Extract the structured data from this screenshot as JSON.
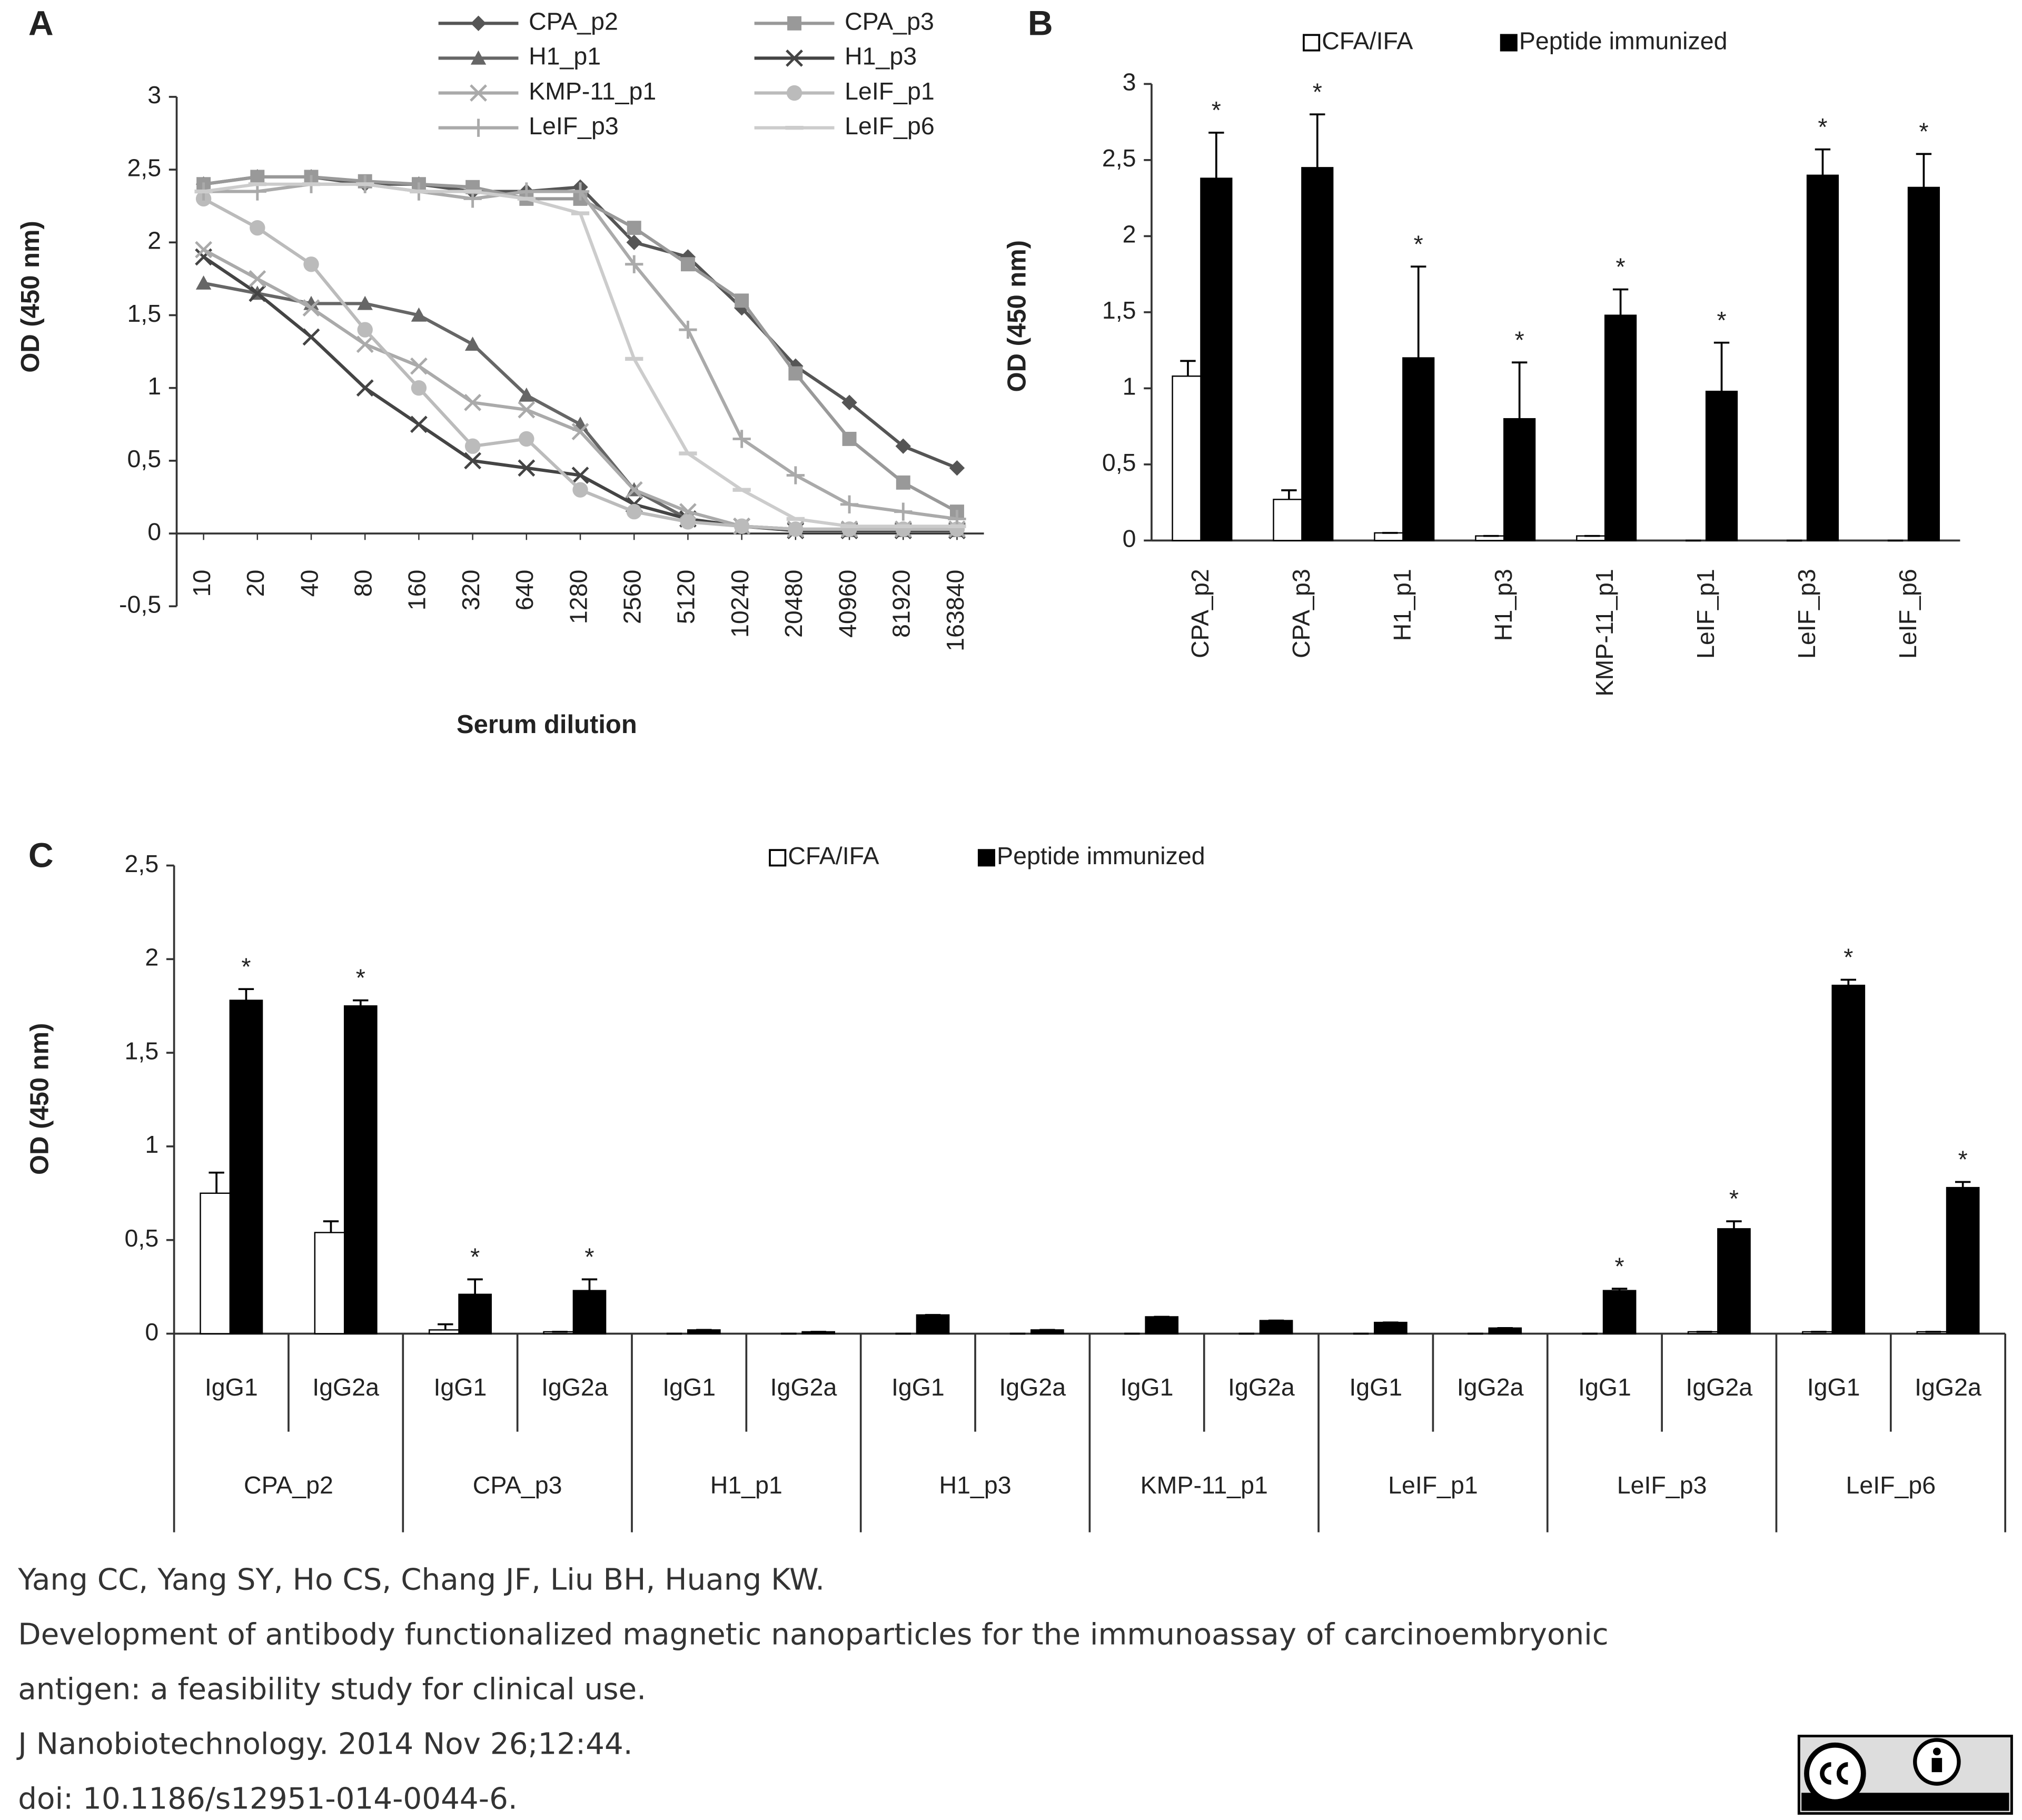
{
  "chart_data": [
    {
      "type": "line",
      "panel": "A",
      "x_label": "Serum dilution",
      "y_label": "OD (450 nm)",
      "categories": [
        "10",
        "20",
        "40",
        "80",
        "160",
        "320",
        "640",
        "1280",
        "2560",
        "5120",
        "10240",
        "20480",
        "40960",
        "81920",
        "163840"
      ],
      "ylim": [
        -0.5,
        3
      ],
      "yticks": [
        {
          "value": -0.5,
          "label": "-0,5"
        },
        0,
        {
          "value": 0.5,
          "label": "0,5"
        },
        1,
        {
          "value": 1.5,
          "label": "1,5"
        },
        2,
        {
          "value": 2.5,
          "label": "2,5"
        },
        3
      ],
      "series": [
        {
          "name": "CPA_p2",
          "color": "#555555",
          "marker": "diamond",
          "values": [
            2.4,
            2.45,
            2.45,
            2.4,
            2.4,
            2.35,
            2.35,
            2.38,
            2.0,
            1.9,
            1.55,
            1.15,
            0.9,
            0.6,
            0.45
          ]
        },
        {
          "name": "CPA_p3",
          "color": "#999999",
          "marker": "square",
          "values": [
            2.4,
            2.45,
            2.45,
            2.42,
            2.4,
            2.38,
            2.3,
            2.3,
            2.1,
            1.85,
            1.6,
            1.1,
            0.65,
            0.35,
            0.15
          ]
        },
        {
          "name": "H1_p1",
          "color": "#666666",
          "marker": "triangle",
          "values": [
            1.72,
            1.65,
            1.58,
            1.58,
            1.5,
            1.3,
            0.95,
            0.75,
            0.3,
            0.1,
            0.05,
            0.03,
            0.02,
            0.02,
            0.02
          ]
        },
        {
          "name": "H1_p3",
          "color": "#444444",
          "marker": "x",
          "values": [
            1.9,
            1.65,
            1.35,
            1.0,
            0.75,
            0.5,
            0.45,
            0.4,
            0.2,
            0.1,
            0.05,
            0.02,
            0.02,
            0.02,
            0.02
          ]
        },
        {
          "name": "KMP-11_p1",
          "color": "#aaaaaa",
          "marker": "x",
          "values": [
            1.95,
            1.75,
            1.55,
            1.3,
            1.15,
            0.9,
            0.85,
            0.7,
            0.3,
            0.15,
            0.05,
            0.03,
            0.03,
            0.03,
            0.03
          ]
        },
        {
          "name": "LeIF_p1",
          "color": "#bbbbbb",
          "marker": "circle",
          "values": [
            2.3,
            2.1,
            1.85,
            1.4,
            1.0,
            0.6,
            0.65,
            0.3,
            0.15,
            0.08,
            0.05,
            0.03,
            0.03,
            0.03,
            0.03
          ]
        },
        {
          "name": "LeIF_p3",
          "color": "#aaaaaa",
          "marker": "plus",
          "values": [
            2.35,
            2.35,
            2.4,
            2.4,
            2.35,
            2.3,
            2.35,
            2.35,
            1.85,
            1.4,
            0.65,
            0.4,
            0.2,
            0.15,
            0.1
          ]
        },
        {
          "name": "LeIF_p6",
          "color": "#cccccc",
          "marker": "dash",
          "values": [
            2.35,
            2.4,
            2.4,
            2.4,
            2.35,
            2.35,
            2.3,
            2.2,
            1.2,
            0.55,
            0.3,
            0.1,
            0.05,
            0.05,
            0.05
          ]
        }
      ]
    },
    {
      "type": "bar",
      "panel": "B",
      "y_label": "OD (450 nm)",
      "categories": [
        "CPA_p2",
        "CPA_p3",
        "H1_p1",
        "H1_p3",
        "KMP-11_p1",
        "LeIF_p1",
        "LeIF_p3",
        "LeIF_p6"
      ],
      "ylim": [
        0,
        3
      ],
      "yticks": [
        0,
        {
          "value": 0.5,
          "label": "0,5"
        },
        1,
        {
          "value": 1.5,
          "label": "1,5"
        },
        2,
        {
          "value": 2.5,
          "label": "2,5"
        },
        3
      ],
      "series": [
        {
          "name": "CFA/IFA",
          "color": "#ffffff",
          "values": [
            1.08,
            0.27,
            0.05,
            0.03,
            0.03,
            0,
            0,
            0
          ],
          "errors": [
            0.1,
            0.06,
            0,
            0,
            0,
            0,
            0,
            0
          ]
        },
        {
          "name": "Peptide immunized",
          "color": "#000000",
          "values": [
            2.38,
            2.45,
            1.2,
            0.8,
            1.48,
            0.98,
            2.4,
            2.32
          ],
          "errors": [
            0.3,
            0.35,
            0.6,
            0.37,
            0.17,
            0.32,
            0.17,
            0.22
          ],
          "significance": [
            "*",
            "*",
            "*",
            "*",
            "*",
            "*",
            "*",
            "*"
          ]
        }
      ]
    },
    {
      "type": "bar",
      "panel": "C",
      "y_label": "OD (450 nm)",
      "categories": [
        "IgG1",
        "IgG2a",
        "IgG1",
        "IgG2a",
        "IgG1",
        "IgG2a",
        "IgG1",
        "IgG2a",
        "IgG1",
        "IgG2a",
        "IgG1",
        "IgG2a",
        "IgG1",
        "IgG2a",
        "IgG1",
        "IgG2a"
      ],
      "groups": [
        "CPA_p2",
        "CPA_p3",
        "H1_p1",
        "H1_p3",
        "KMP-11_p1",
        "LeIF_p1",
        "LeIF_p3",
        "LeIF_p6"
      ],
      "ylim": [
        0,
        2.5
      ],
      "yticks": [
        0,
        {
          "value": 0.5,
          "label": "0,5"
        },
        1,
        {
          "value": 1.5,
          "label": "1,5"
        },
        2,
        {
          "value": 2.5,
          "label": "2,5"
        }
      ],
      "series": [
        {
          "name": "CFA/IFA",
          "color": "#ffffff",
          "values": [
            0.75,
            0.54,
            0.02,
            0.01,
            0,
            0,
            0,
            0,
            0,
            0,
            0,
            0,
            0,
            0.01,
            0.01,
            0.01
          ],
          "errors": [
            0.11,
            0.06,
            0.03,
            0,
            0,
            0,
            0,
            0,
            0,
            0,
            0,
            0,
            0,
            0,
            0,
            0
          ]
        },
        {
          "name": "Peptide immunized",
          "color": "#000000",
          "values": [
            1.78,
            1.75,
            0.21,
            0.23,
            0.02,
            0.01,
            0.1,
            0.02,
            0.09,
            0.07,
            0.06,
            0.03,
            0.23,
            0.56,
            1.86,
            0.78
          ],
          "errors": [
            0.06,
            0.03,
            0.08,
            0.06,
            0,
            0,
            0,
            0,
            0,
            0,
            0,
            0,
            0.01,
            0.04,
            0.03,
            0.03
          ],
          "significance": [
            "*",
            "*",
            "*",
            "*",
            null,
            null,
            null,
            null,
            null,
            null,
            null,
            null,
            "*",
            "*",
            "*",
            "*"
          ]
        }
      ]
    }
  ],
  "caption": {
    "lines": [
      "Yang CC, Yang SY, Ho CS, Chang JF, Liu BH, Huang KW.",
      "Development of antibody functionalized magnetic nanoparticles for the immunoassay of carcinoembryonic",
      "antigen: a feasibility study for clinical use.",
      "J Nanobiotechnology. 2014 Nov 26;12:44.",
      "doi: 10.1186/s12951-014-0044-6."
    ]
  }
}
